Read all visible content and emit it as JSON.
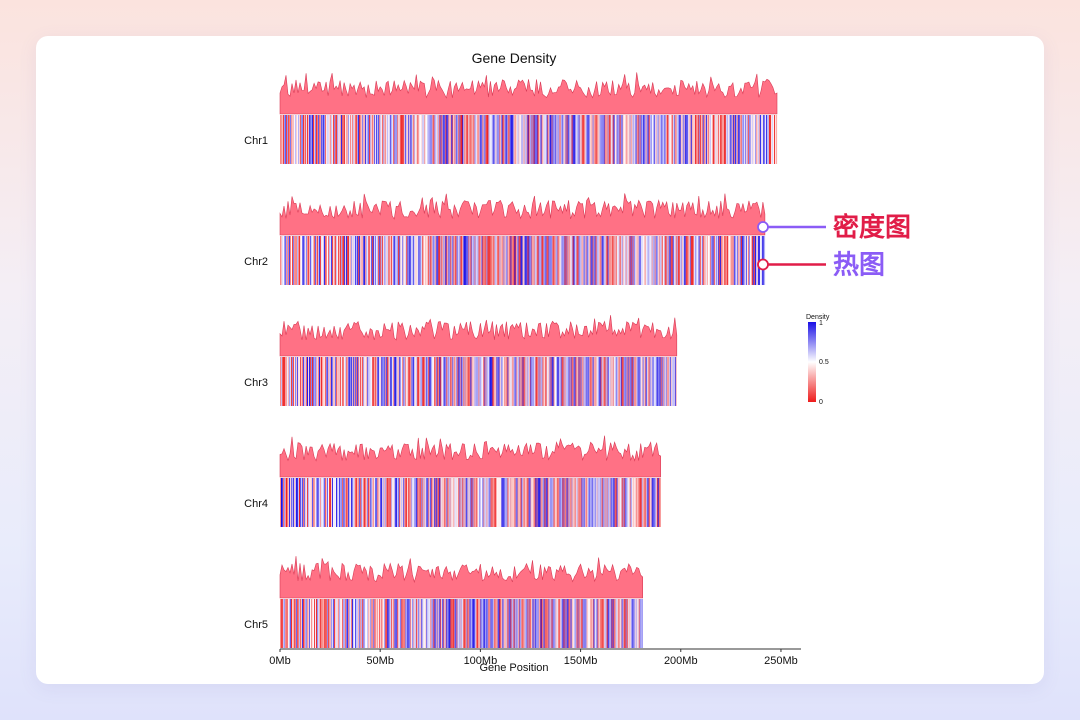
{
  "chart_data": {
    "type": "heatmap",
    "title": "Gene Density",
    "xlabel": "Gene Position",
    "xlim": [
      0,
      260
    ],
    "x_unit": "Mb",
    "x_ticks": [
      0,
      50,
      100,
      150,
      200,
      250
    ],
    "x_tick_labels": [
      "0Mb",
      "50Mb",
      "100Mb",
      "150Mb",
      "200Mb",
      "250Mb"
    ],
    "chromosomes": [
      {
        "name": "Chr1",
        "length_mb": 248,
        "seed": 11
      },
      {
        "name": "Chr2",
        "length_mb": 242,
        "seed": 23
      },
      {
        "name": "Chr3",
        "length_mb": 198,
        "seed": 37
      },
      {
        "name": "Chr4",
        "length_mb": 190,
        "seed": 41
      },
      {
        "name": "Chr5",
        "length_mb": 181,
        "seed": 53
      }
    ],
    "legend": {
      "title": "Density",
      "min": 0,
      "mid": 0.5,
      "max": 1,
      "min_label": "0",
      "mid_label": "0.5",
      "max_label": "1",
      "colors": [
        "#ee1c1c",
        "#ffffff",
        "#1a10e6"
      ]
    },
    "density_fill": "#ff7185",
    "density_stroke": "#d83a55",
    "annotations": [
      {
        "text": "密度图",
        "target": "density-track",
        "chromosome": "Chr2",
        "color": "#e11d48",
        "line_color": "#8b5cf6"
      },
      {
        "text": "热图",
        "target": "heatmap-track",
        "chromosome": "Chr2",
        "color": "#8b5cf6",
        "line_color": "#e11d48"
      }
    ]
  }
}
